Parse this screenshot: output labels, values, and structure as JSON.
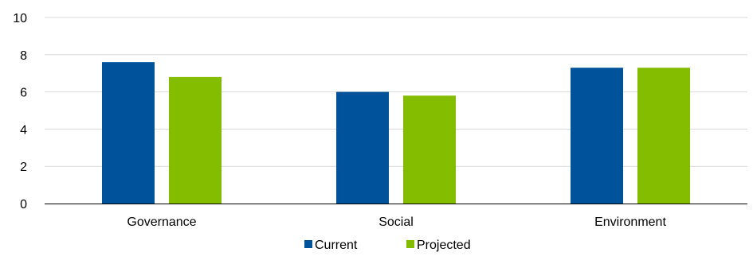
{
  "chart_data": {
    "type": "bar",
    "title": "",
    "xlabel": "",
    "ylabel": "",
    "categories": [
      "Governance",
      "Social",
      "Environment"
    ],
    "series": [
      {
        "name": "Current",
        "values": [
          7.6,
          6.0,
          7.3
        ],
        "color": "#00539b"
      },
      {
        "name": "Projected",
        "values": [
          6.8,
          5.8,
          7.3
        ],
        "color": "#84bd00"
      }
    ],
    "ylim": [
      0,
      10
    ],
    "yticks": [
      "0",
      "2",
      "4",
      "6",
      "8",
      "10"
    ],
    "grid": true,
    "legend_position": "bottom-center"
  },
  "colors": {
    "grid": "#d9d9d9",
    "axis": "#000000"
  }
}
